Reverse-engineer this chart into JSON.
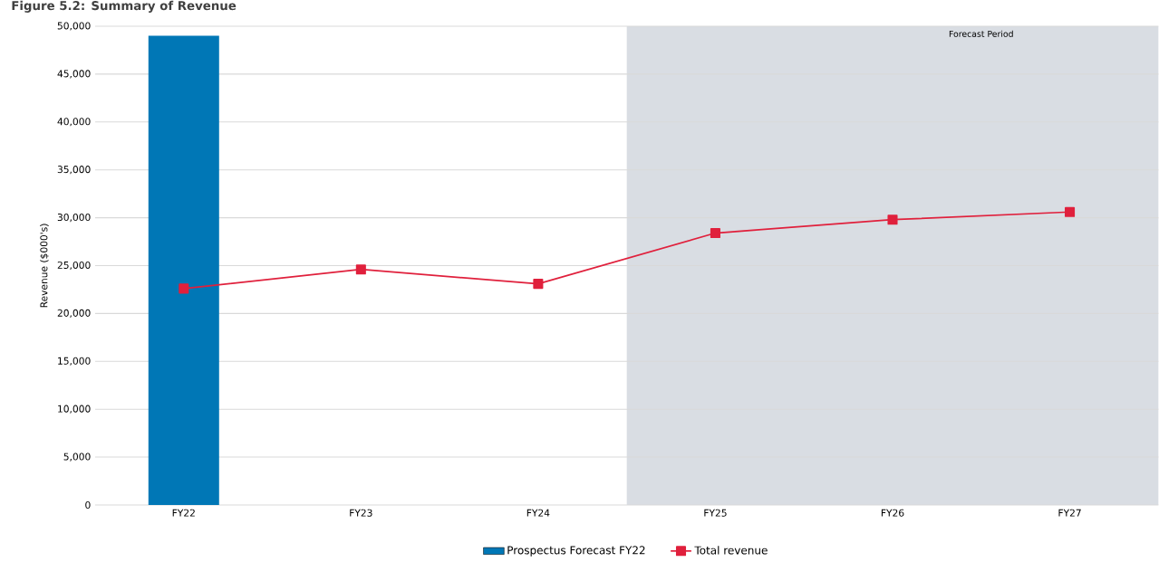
{
  "chart_data": {
    "type": "bar",
    "title": "Figure 5.2: Summary of Revenue",
    "categories": [
      "FY22",
      "FY23",
      "FY24",
      "FY25",
      "FY26",
      "FY27"
    ],
    "ylabel": "Revenue ($000's)",
    "series": [
      {
        "name": "Prospectus Forecast FY22",
        "color": "#0077b6",
        "values": [
          49000,
          null,
          null,
          null,
          null,
          null
        ]
      },
      {
        "name": "Total revenue",
        "type": "line",
        "color": "#e0203c",
        "marker": "square",
        "values": [
          22600,
          24600,
          23100,
          28400,
          29800,
          30600
        ]
      }
    ],
    "ylim": [
      0,
      50000
    ],
    "yticks": [
      {
        "value": 0,
        "label": "0"
      },
      {
        "value": 5000,
        "label": "5,000"
      },
      {
        "value": 10000,
        "label": "10,000"
      },
      {
        "value": 15000,
        "label": "15,000"
      },
      {
        "value": 20000,
        "label": "20,000"
      },
      {
        "value": 25000,
        "label": "25,000"
      },
      {
        "value": 30000,
        "label": "30,000"
      },
      {
        "value": 35000,
        "label": "35,000"
      },
      {
        "value": 40000,
        "label": "40,000"
      },
      {
        "value": 45000,
        "label": "45,000"
      },
      {
        "value": 50000,
        "label": "50,000"
      }
    ],
    "annotations": [
      "Forecast Period"
    ],
    "grid": "y",
    "legend": "bottom"
  }
}
